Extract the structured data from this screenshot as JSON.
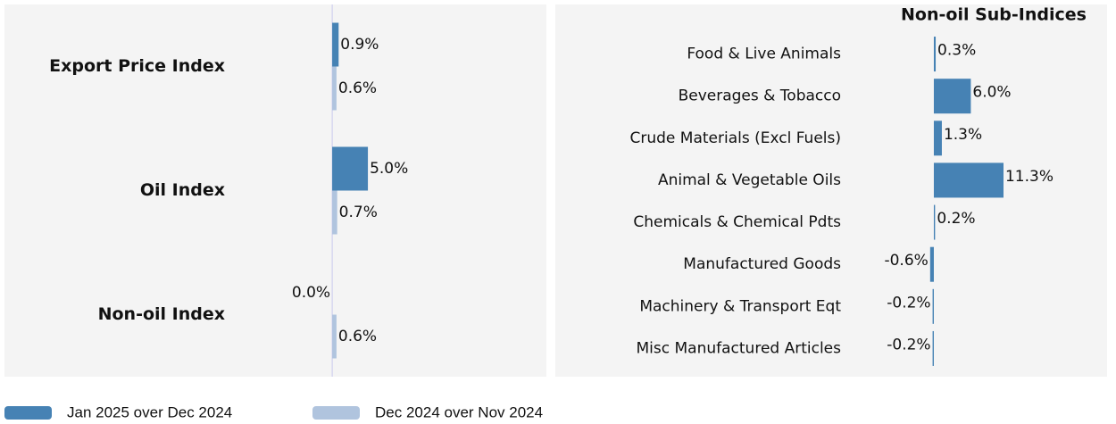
{
  "chart_data": [
    {
      "type": "bar",
      "orientation": "horizontal",
      "categories": [
        "Export Price Index",
        "Oil Index",
        "Non-oil Index"
      ],
      "series": [
        {
          "name": "Jan 2025 over Dec 2024",
          "color": "#4682b4",
          "values": [
            0.9,
            5.0,
            0.0
          ],
          "value_labels": [
            "0.9%",
            "5.0%",
            "0.0%"
          ]
        },
        {
          "name": "Dec 2024 over Nov 2024",
          "color": "#b0c4de",
          "values": [
            0.6,
            0.7,
            0.6
          ],
          "value_labels": [
            "0.6%",
            "0.7%",
            "0.6%"
          ]
        }
      ],
      "xlim": [
        -45.9,
        30
      ],
      "zero_line": true,
      "legend": "bottom"
    },
    {
      "type": "bar",
      "orientation": "horizontal",
      "title": "Non-oil Sub-Indices",
      "categories": [
        "Food & Live Animals",
        "Beverages & Tobacco",
        "Crude Materials (Excl Fuels)",
        "Animal & Vegetable Oils",
        "Chemicals & Chemical Pdts",
        "Manufactured Goods",
        "Machinery & Transport Eqt",
        "Misc Manufactured Articles"
      ],
      "values": [
        0.3,
        6.0,
        1.3,
        11.3,
        0.2,
        -0.6,
        -0.2,
        -0.2
      ],
      "value_labels": [
        "0.3%",
        "6.0%",
        "1.3%",
        "11.3%",
        "0.2%",
        "-0.6%",
        "-0.2%",
        "-0.2%"
      ],
      "color": "#4682b4",
      "xlim": [
        -61.4,
        28.1
      ]
    }
  ]
}
